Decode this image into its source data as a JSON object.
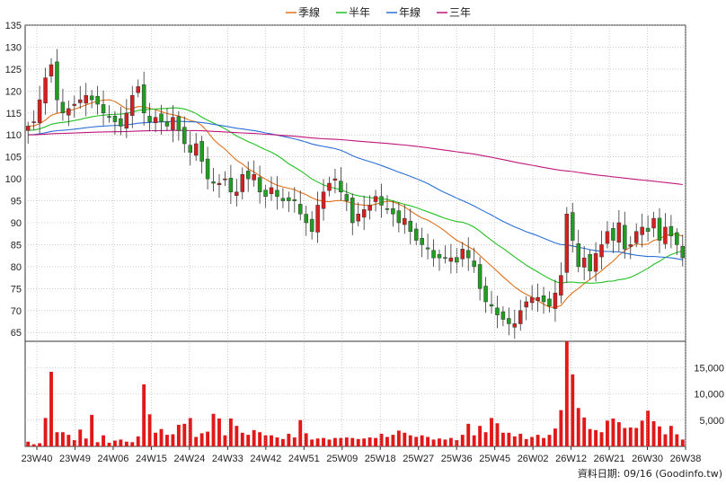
{
  "chart_data": {
    "type": "candlestick",
    "legend": [
      {
        "name": "季線",
        "color": "#e0701c"
      },
      {
        "name": "半年",
        "color": "#22c022"
      },
      {
        "name": "年線",
        "color": "#2a6fd6"
      },
      {
        "name": "三年",
        "color": "#c0167a"
      }
    ],
    "price_axis": {
      "ylim": [
        63,
        135
      ],
      "ticks": [
        65,
        70,
        75,
        80,
        85,
        90,
        95,
        100,
        105,
        110,
        115,
        120,
        125,
        130,
        135
      ]
    },
    "volume_axis": {
      "ylim": [
        0,
        20000
      ],
      "ticks": [
        5000,
        10000,
        15000
      ],
      "tick_labels": [
        "5,000",
        "10,000",
        "15,000"
      ]
    },
    "x_ticks": [
      "23W40",
      "23W49",
      "24W06",
      "24W15",
      "24W24",
      "24W33",
      "24W42",
      "24W51",
      "25W09",
      "25W18",
      "25W27",
      "25W36",
      "25W45",
      "26W02",
      "26W12",
      "26W21",
      "26W30",
      "26W38"
    ],
    "grid": true,
    "up_color": "#d81e1e",
    "down_color": "#1ea01e",
    "credit": "資料日期: 09/16  (Goodinfo.tw)",
    "close": [
      112,
      113,
      118,
      123,
      126,
      118,
      115,
      116,
      117,
      118,
      119,
      118,
      117,
      115,
      114,
      113,
      112,
      115,
      119,
      121,
      115,
      113,
      114,
      113,
      112,
      114,
      111,
      108,
      106,
      108,
      104,
      100,
      99,
      99,
      100,
      97,
      97,
      101,
      100,
      101,
      97,
      96,
      98,
      96,
      95,
      95,
      95,
      92,
      90,
      88,
      94,
      97,
      99,
      100,
      97,
      95,
      90,
      92,
      93,
      94,
      96,
      94,
      93,
      92,
      90,
      91,
      88,
      86,
      85,
      84,
      82,
      82,
      82,
      82,
      81,
      84,
      82,
      80,
      75,
      72,
      71,
      69,
      68,
      67,
      67,
      70,
      72,
      73,
      73,
      72,
      71,
      74,
      78,
      92,
      86,
      80,
      82,
      79,
      83,
      85,
      88,
      86,
      90,
      84,
      85,
      88,
      89,
      88,
      91,
      86,
      89,
      87,
      85,
      82
    ],
    "volume": [
      900,
      400,
      600,
      5400,
      14200,
      2700,
      2700,
      2200,
      1200,
      3200,
      1500,
      6000,
      800,
      2100,
      700,
      1100,
      1300,
      900,
      800,
      1900,
      11800,
      6100,
      2600,
      3300,
      2200,
      2300,
      4100,
      4300,
      5400,
      1800,
      2500,
      2800,
      6200,
      5300,
      2100,
      5300,
      3900,
      2600,
      2200,
      3100,
      2700,
      2100,
      2100,
      1700,
      1400,
      2400,
      1700,
      5000,
      2500,
      1300,
      1500,
      1600,
      1300,
      1600,
      1600,
      1700,
      1600,
      1400,
      1500,
      1700,
      1600,
      2400,
      1800,
      2200,
      3000,
      2600,
      2100,
      1800,
      2100,
      1800,
      1300,
      1500,
      1300,
      1600,
      1200,
      2200,
      4300,
      2100,
      3900,
      2700,
      5400,
      4400,
      2600,
      2600,
      1900,
      2400,
      1400,
      1800,
      2200,
      1600,
      2200,
      3400,
      6900,
      20000,
      13700,
      7300,
      5500,
      3300,
      3100,
      2700,
      4900,
      5300,
      4600,
      3500,
      3600,
      3500,
      4900,
      6800,
      4800,
      3800,
      2300,
      3900,
      2300,
      1300
    ]
  }
}
